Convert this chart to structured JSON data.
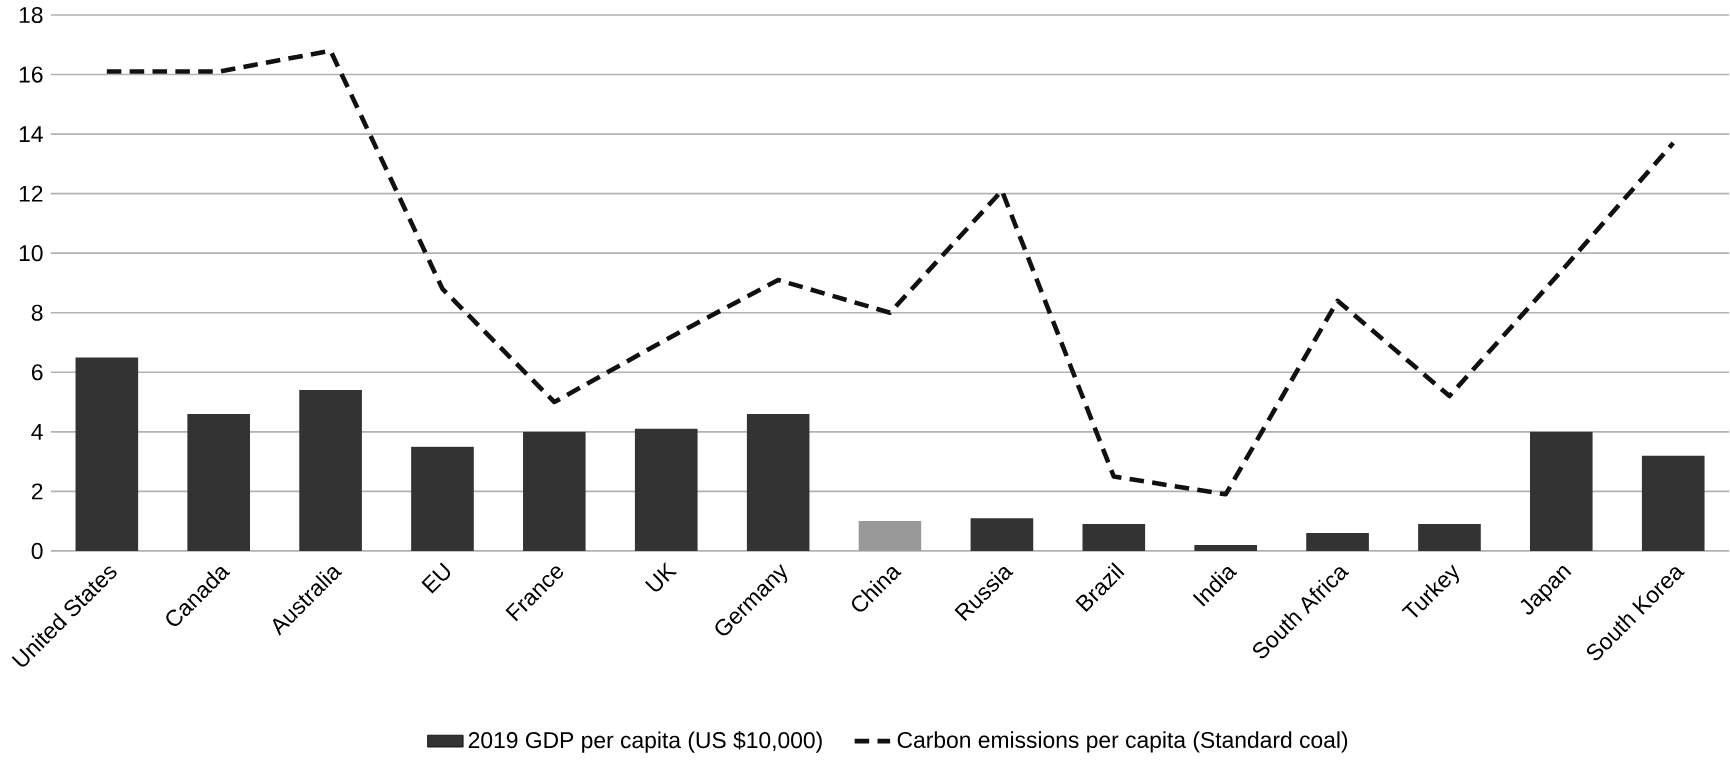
{
  "chart_data": {
    "type": "bar",
    "categories": [
      "United States",
      "Canada",
      "Australia",
      "EU",
      "France",
      "UK",
      "Germany",
      "China",
      "Russia",
      "Brazil",
      "India",
      "South Africa",
      "Turkey",
      "Japan",
      "South Korea"
    ],
    "series": [
      {
        "name": "2019 GDP per capita (US $10,000)",
        "color": "#333333",
        "colors": [
          "#333333",
          "#333333",
          "#333333",
          "#333333",
          "#333333",
          "#333333",
          "#333333",
          "#999999",
          "#333333",
          "#333333",
          "#333333",
          "#333333",
          "#333333",
          "#333333",
          "#333333"
        ],
        "values": [
          6.5,
          4.6,
          5.4,
          3.5,
          4.0,
          4.1,
          4.6,
          1.0,
          1.1,
          0.9,
          0.2,
          0.6,
          0.9,
          4.0,
          3.2
        ]
      },
      {
        "name": "Carbon emissions per capita (Standard coal)",
        "type": "line",
        "color": "#111111",
        "line_style": "dashed",
        "marker": "none",
        "values": [
          16.1,
          16.1,
          16.8,
          8.8,
          5.0,
          7.1,
          9.1,
          8.0,
          12.1,
          2.5,
          1.9,
          8.4,
          5.2,
          9.4,
          13.7
        ]
      }
    ],
    "ylim": [
      0,
      18
    ],
    "yticks": [
      0,
      2,
      4,
      6,
      8,
      10,
      12,
      14,
      16,
      18
    ],
    "grid": "y",
    "legend": "bottom"
  }
}
